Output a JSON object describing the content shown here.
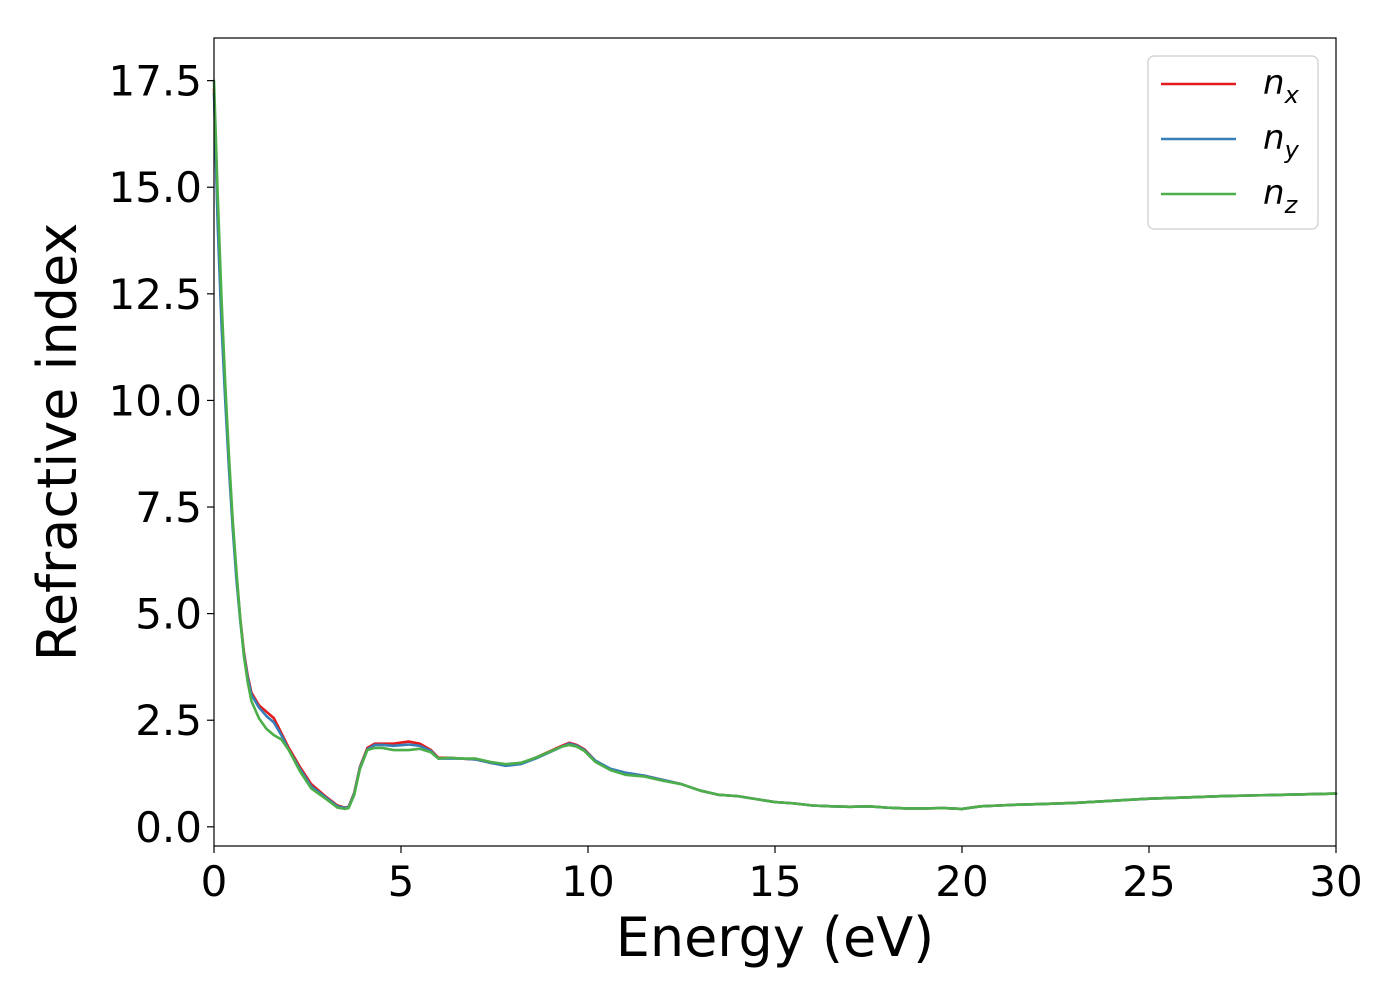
{
  "chart_data": {
    "type": "line",
    "title": "",
    "xlabel": "Energy (eV)",
    "ylabel": "Refractive index",
    "xlim": [
      0,
      30
    ],
    "ylim": [
      -0.45,
      18.5
    ],
    "xticks": [
      "0",
      "5",
      "10",
      "15",
      "20",
      "25",
      "30"
    ],
    "yticks": [
      "0.0",
      "2.5",
      "5.0",
      "7.5",
      "10.0",
      "12.5",
      "15.0",
      "17.5"
    ],
    "grid": false,
    "legend_position": "top-right",
    "series": [
      {
        "name": "n",
        "subscript": "x",
        "color": "#e41a1c",
        "x": [
          0.0,
          0.1,
          0.2,
          0.3,
          0.4,
          0.5,
          0.6,
          0.7,
          0.8,
          0.9,
          1.0,
          1.2,
          1.4,
          1.6,
          1.8,
          2.0,
          2.3,
          2.6,
          3.0,
          3.3,
          3.5,
          3.6,
          3.75,
          3.9,
          4.1,
          4.3,
          4.5,
          4.8,
          5.2,
          5.5,
          5.8,
          6.0,
          6.3,
          6.6,
          7.0,
          7.4,
          7.8,
          8.2,
          8.6,
          9.0,
          9.3,
          9.5,
          9.7,
          9.9,
          10.2,
          10.6,
          11.0,
          11.5,
          12.0,
          12.5,
          13.0,
          13.5,
          14.0,
          14.5,
          15.0,
          15.5,
          16.0,
          16.5,
          17.0,
          17.5,
          18.0,
          18.5,
          19.0,
          19.5,
          20.0,
          20.5,
          21.0,
          21.5,
          22.0,
          23.0,
          24.0,
          25.0,
          26.0,
          27.0,
          28.0,
          29.0,
          30.0
        ],
        "values": [
          17.3,
          14.3,
          12.0,
          10.2,
          8.5,
          7.1,
          5.9,
          4.9,
          4.1,
          3.55,
          3.15,
          2.85,
          2.7,
          2.55,
          2.2,
          1.85,
          1.4,
          1.0,
          0.7,
          0.5,
          0.45,
          0.47,
          0.8,
          1.4,
          1.85,
          1.95,
          1.95,
          1.95,
          2.0,
          1.95,
          1.8,
          1.62,
          1.62,
          1.6,
          1.58,
          1.5,
          1.45,
          1.48,
          1.62,
          1.78,
          1.9,
          1.97,
          1.92,
          1.82,
          1.55,
          1.35,
          1.25,
          1.2,
          1.1,
          1.0,
          0.85,
          0.75,
          0.72,
          0.65,
          0.58,
          0.55,
          0.5,
          0.48,
          0.47,
          0.48,
          0.45,
          0.43,
          0.43,
          0.44,
          0.42,
          0.48,
          0.5,
          0.52,
          0.53,
          0.56,
          0.61,
          0.66,
          0.69,
          0.72,
          0.74,
          0.76,
          0.78
        ]
      },
      {
        "name": "n",
        "subscript": "y",
        "color": "#377eb8",
        "x": [
          0.0,
          0.1,
          0.2,
          0.3,
          0.4,
          0.5,
          0.6,
          0.7,
          0.8,
          0.9,
          1.0,
          1.2,
          1.4,
          1.6,
          1.8,
          2.0,
          2.3,
          2.6,
          3.0,
          3.3,
          3.5,
          3.6,
          3.75,
          3.9,
          4.1,
          4.3,
          4.5,
          4.8,
          5.2,
          5.5,
          5.8,
          6.0,
          6.3,
          6.6,
          7.0,
          7.4,
          7.8,
          8.2,
          8.6,
          9.0,
          9.3,
          9.5,
          9.7,
          9.9,
          10.2,
          10.6,
          11.0,
          11.5,
          12.0,
          12.5,
          13.0,
          13.5,
          14.0,
          14.5,
          15.0,
          15.5,
          16.0,
          16.5,
          17.0,
          17.5,
          18.0,
          18.5,
          19.0,
          19.5,
          20.0,
          20.5,
          21.0,
          21.5,
          22.0,
          23.0,
          24.0,
          25.0,
          26.0,
          27.0,
          28.0,
          29.0,
          30.0
        ],
        "values": [
          17.2,
          14.1,
          11.8,
          10.0,
          8.4,
          7.0,
          5.8,
          4.85,
          4.05,
          3.5,
          3.1,
          2.8,
          2.6,
          2.45,
          2.15,
          1.8,
          1.35,
          0.95,
          0.68,
          0.48,
          0.44,
          0.46,
          0.78,
          1.38,
          1.82,
          1.92,
          1.92,
          1.9,
          1.93,
          1.9,
          1.78,
          1.6,
          1.6,
          1.6,
          1.58,
          1.5,
          1.43,
          1.47,
          1.6,
          1.76,
          1.88,
          1.95,
          1.9,
          1.8,
          1.55,
          1.36,
          1.27,
          1.2,
          1.1,
          1.0,
          0.85,
          0.75,
          0.72,
          0.65,
          0.58,
          0.55,
          0.5,
          0.48,
          0.47,
          0.48,
          0.45,
          0.43,
          0.43,
          0.44,
          0.42,
          0.48,
          0.5,
          0.52,
          0.53,
          0.56,
          0.61,
          0.66,
          0.69,
          0.72,
          0.74,
          0.76,
          0.78
        ]
      },
      {
        "name": "n",
        "subscript": "z",
        "color": "#4daf4a",
        "x": [
          0.0,
          0.1,
          0.2,
          0.3,
          0.4,
          0.5,
          0.6,
          0.7,
          0.8,
          0.9,
          1.0,
          1.2,
          1.4,
          1.6,
          1.8,
          2.0,
          2.3,
          2.6,
          3.0,
          3.3,
          3.5,
          3.6,
          3.75,
          3.9,
          4.1,
          4.3,
          4.5,
          4.8,
          5.2,
          5.5,
          5.8,
          6.0,
          6.3,
          6.6,
          7.0,
          7.4,
          7.8,
          8.2,
          8.6,
          9.0,
          9.3,
          9.5,
          9.7,
          9.9,
          10.2,
          10.6,
          11.0,
          11.5,
          12.0,
          12.5,
          13.0,
          13.5,
          14.0,
          14.5,
          15.0,
          15.5,
          16.0,
          16.5,
          17.0,
          17.5,
          18.0,
          18.5,
          19.0,
          19.5,
          20.0,
          20.5,
          21.0,
          21.5,
          22.0,
          23.0,
          24.0,
          25.0,
          26.0,
          27.0,
          28.0,
          29.0,
          30.0
        ],
        "values": [
          17.5,
          14.8,
          12.4,
          10.4,
          8.7,
          7.2,
          6.0,
          4.9,
          4.0,
          3.4,
          2.95,
          2.55,
          2.3,
          2.15,
          2.05,
          1.8,
          1.3,
          0.9,
          0.65,
          0.45,
          0.42,
          0.44,
          0.75,
          1.35,
          1.8,
          1.85,
          1.85,
          1.8,
          1.8,
          1.83,
          1.75,
          1.6,
          1.62,
          1.6,
          1.6,
          1.52,
          1.47,
          1.5,
          1.62,
          1.77,
          1.88,
          1.92,
          1.88,
          1.78,
          1.52,
          1.33,
          1.22,
          1.18,
          1.08,
          1.0,
          0.85,
          0.75,
          0.72,
          0.65,
          0.58,
          0.55,
          0.5,
          0.48,
          0.47,
          0.48,
          0.45,
          0.43,
          0.43,
          0.44,
          0.42,
          0.48,
          0.5,
          0.52,
          0.53,
          0.56,
          0.61,
          0.66,
          0.69,
          0.72,
          0.74,
          0.76,
          0.78
        ]
      }
    ]
  }
}
